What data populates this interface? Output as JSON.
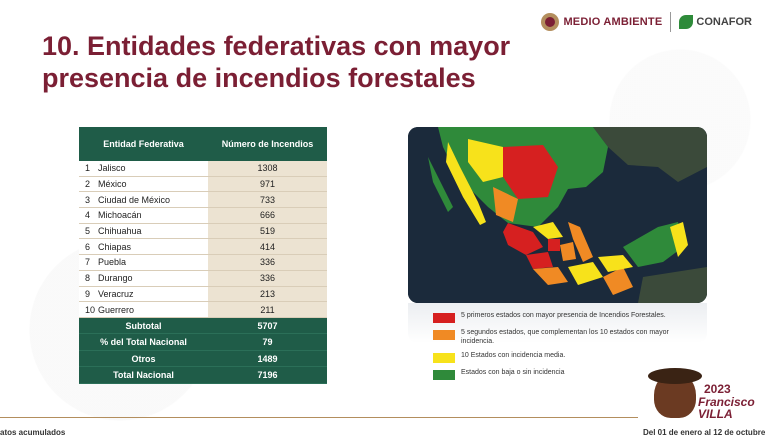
{
  "header": {
    "title": "10. Entidades federativas con mayor presencia de incendios forestales",
    "logo_medio_ambiente": "MEDIO AMBIENTE",
    "logo_conafor": "CONAFOR"
  },
  "table": {
    "headers": [
      "Entidad Federativa",
      "Número de Incendios"
    ],
    "rows": [
      {
        "n": "1",
        "state": "Jalisco",
        "value": "1308"
      },
      {
        "n": "2",
        "state": "México",
        "value": "971"
      },
      {
        "n": "3",
        "state": "Ciudad de México",
        "value": "733"
      },
      {
        "n": "4",
        "state": "Michoacán",
        "value": "666"
      },
      {
        "n": "5",
        "state": "Chihuahua",
        "value": "519"
      },
      {
        "n": "6",
        "state": "Chiapas",
        "value": "414"
      },
      {
        "n": "7",
        "state": "Puebla",
        "value": "336"
      },
      {
        "n": "8",
        "state": "Durango",
        "value": "336"
      },
      {
        "n": "9",
        "state": "Veracruz",
        "value": "213"
      },
      {
        "n": "10",
        "state": "Guerrero",
        "value": "211"
      }
    ],
    "summary": [
      {
        "label": "Subtotal",
        "value": "5707"
      },
      {
        "label": "% del Total Nacional",
        "value": "79"
      },
      {
        "label": "Otros",
        "value": "1489"
      },
      {
        "label": "Total Nacional",
        "value": "7196"
      }
    ]
  },
  "map": {
    "colors": {
      "top5": "#d62020",
      "next5": "#f08a24",
      "medium": "#f7e21b",
      "low": "#2f8a3a",
      "sea": "#1b2a3b"
    }
  },
  "legend": [
    {
      "color": "#d62020",
      "text": "5 primeros estados con mayor presencia de Incendios Forestales."
    },
    {
      "color": "#f08a24",
      "text": "5 segundos estados, que complementan los 10 estados con mayor incidencia."
    },
    {
      "color": "#f7e21b",
      "text": "10 Estados con incidencia media."
    },
    {
      "color": "#2f8a3a",
      "text": "Estados con baja o sin incidencia"
    }
  ],
  "badge": {
    "year": "2023",
    "name_line1": "Francisco",
    "name_line2": "VILLA"
  },
  "footer": {
    "left": "atos acumulados",
    "right": "Del 01 de enero al 12 de octubre"
  }
}
